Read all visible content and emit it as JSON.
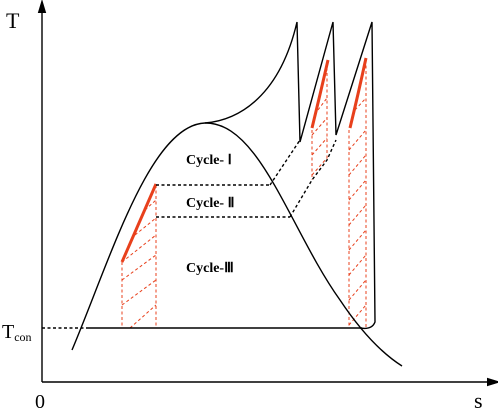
{
  "axes": {
    "y_label": "T",
    "x_label": "s",
    "origin": "0",
    "tcon_main": "T",
    "tcon_sub": "con"
  },
  "cycles": [
    {
      "label": "Cycle- Ⅰ"
    },
    {
      "label": "Cycle- Ⅱ"
    },
    {
      "label": "Cycle-Ⅲ"
    }
  ]
}
